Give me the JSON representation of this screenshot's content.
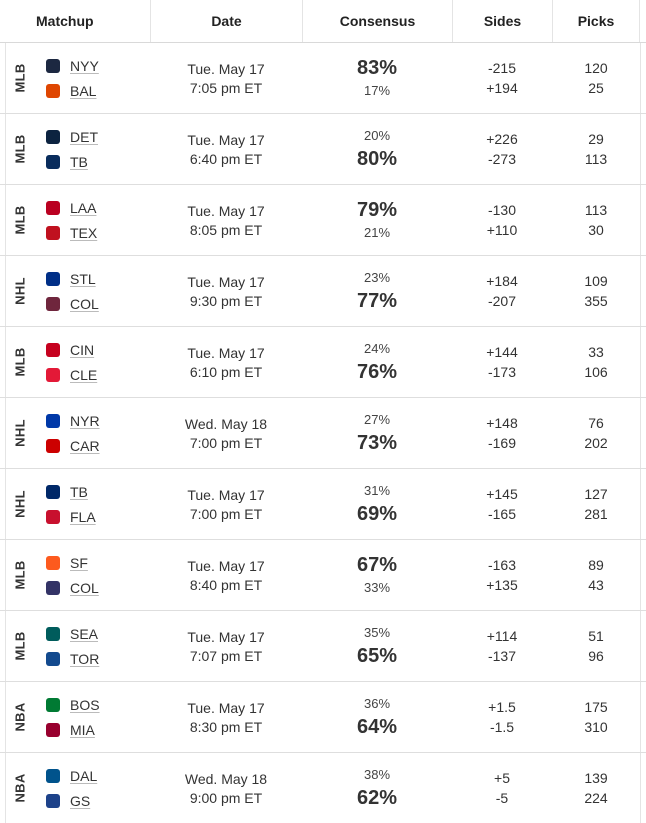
{
  "header": {
    "matchup": "Matchup",
    "date": "Date",
    "consensus": "Consensus",
    "sides": "Sides",
    "picks": "Picks"
  },
  "rows": [
    {
      "sport": "MLB",
      "date": "Tue. May 17",
      "time": "7:05 pm ET",
      "away": {
        "abbr": "NYY",
        "logo": "yankees-logo",
        "color": "#1c2841",
        "consensus": "83%",
        "side": "-215",
        "picks": "120"
      },
      "home": {
        "abbr": "BAL",
        "logo": "orioles-logo",
        "color": "#df4601",
        "consensus": "17%",
        "side": "+194",
        "picks": "25"
      },
      "favorite": "away"
    },
    {
      "sport": "MLB",
      "date": "Tue. May 17",
      "time": "6:40 pm ET",
      "away": {
        "abbr": "DET",
        "logo": "tigers-logo",
        "color": "#0c2340",
        "consensus": "20%",
        "side": "+226",
        "picks": "29"
      },
      "home": {
        "abbr": "TB",
        "logo": "rays-logo",
        "color": "#092c5c",
        "consensus": "80%",
        "side": "-273",
        "picks": "113"
      },
      "favorite": "home"
    },
    {
      "sport": "MLB",
      "date": "Tue. May 17",
      "time": "8:05 pm ET",
      "away": {
        "abbr": "LAA",
        "logo": "angels-logo",
        "color": "#ba0021",
        "consensus": "79%",
        "side": "-130",
        "picks": "113"
      },
      "home": {
        "abbr": "TEX",
        "logo": "rangers-logo",
        "color": "#c0111f",
        "consensus": "21%",
        "side": "+110",
        "picks": "30"
      },
      "favorite": "away"
    },
    {
      "sport": "NHL",
      "date": "Tue. May 17",
      "time": "9:30 pm ET",
      "away": {
        "abbr": "STL",
        "logo": "blues-logo",
        "color": "#002f87",
        "consensus": "23%",
        "side": "+184",
        "picks": "109"
      },
      "home": {
        "abbr": "COL",
        "logo": "avalanche-logo",
        "color": "#6f263d",
        "consensus": "77%",
        "side": "-207",
        "picks": "355"
      },
      "favorite": "home"
    },
    {
      "sport": "MLB",
      "date": "Tue. May 17",
      "time": "6:10 pm ET",
      "away": {
        "abbr": "CIN",
        "logo": "reds-logo",
        "color": "#c6011f",
        "consensus": "24%",
        "side": "+144",
        "picks": "33"
      },
      "home": {
        "abbr": "CLE",
        "logo": "guardians-logo",
        "color": "#e31937",
        "consensus": "76%",
        "side": "-173",
        "picks": "106"
      },
      "favorite": "home"
    },
    {
      "sport": "NHL",
      "date": "Wed. May 18",
      "time": "7:00 pm ET",
      "away": {
        "abbr": "NYR",
        "logo": "rangers-nhl-logo",
        "color": "#0038a8",
        "consensus": "27%",
        "side": "+148",
        "picks": "76"
      },
      "home": {
        "abbr": "CAR",
        "logo": "hurricanes-logo",
        "color": "#cc0000",
        "consensus": "73%",
        "side": "-169",
        "picks": "202"
      },
      "favorite": "home"
    },
    {
      "sport": "NHL",
      "date": "Tue. May 17",
      "time": "7:00 pm ET",
      "away": {
        "abbr": "TB",
        "logo": "lightning-logo",
        "color": "#002868",
        "consensus": "31%",
        "side": "+145",
        "picks": "127"
      },
      "home": {
        "abbr": "FLA",
        "logo": "panthers-logo",
        "color": "#c8102e",
        "consensus": "69%",
        "side": "-165",
        "picks": "281"
      },
      "favorite": "home"
    },
    {
      "sport": "MLB",
      "date": "Tue. May 17",
      "time": "8:40 pm ET",
      "away": {
        "abbr": "SF",
        "logo": "giants-logo",
        "color": "#fd5a1e",
        "consensus": "67%",
        "side": "-163",
        "picks": "89"
      },
      "home": {
        "abbr": "COL",
        "logo": "rockies-logo",
        "color": "#333366",
        "consensus": "33%",
        "side": "+135",
        "picks": "43"
      },
      "favorite": "away"
    },
    {
      "sport": "MLB",
      "date": "Tue. May 17",
      "time": "7:07 pm ET",
      "away": {
        "abbr": "SEA",
        "logo": "mariners-logo",
        "color": "#005c5c",
        "consensus": "35%",
        "side": "+114",
        "picks": "51"
      },
      "home": {
        "abbr": "TOR",
        "logo": "bluejays-logo",
        "color": "#134a8e",
        "consensus": "65%",
        "side": "-137",
        "picks": "96"
      },
      "favorite": "home"
    },
    {
      "sport": "NBA",
      "date": "Tue. May 17",
      "time": "8:30 pm ET",
      "away": {
        "abbr": "BOS",
        "logo": "celtics-logo",
        "color": "#007a33",
        "consensus": "36%",
        "side": "+1.5",
        "picks": "175"
      },
      "home": {
        "abbr": "MIA",
        "logo": "heat-logo",
        "color": "#98002e",
        "consensus": "64%",
        "side": "-1.5",
        "picks": "310"
      },
      "favorite": "home"
    },
    {
      "sport": "NBA",
      "date": "Wed. May 18",
      "time": "9:00 pm ET",
      "away": {
        "abbr": "DAL",
        "logo": "mavericks-logo",
        "color": "#00538c",
        "consensus": "38%",
        "side": "+5",
        "picks": "139"
      },
      "home": {
        "abbr": "GS",
        "logo": "warriors-logo",
        "color": "#1d428a",
        "consensus": "62%",
        "side": "-5",
        "picks": "224"
      },
      "favorite": "home"
    }
  ]
}
